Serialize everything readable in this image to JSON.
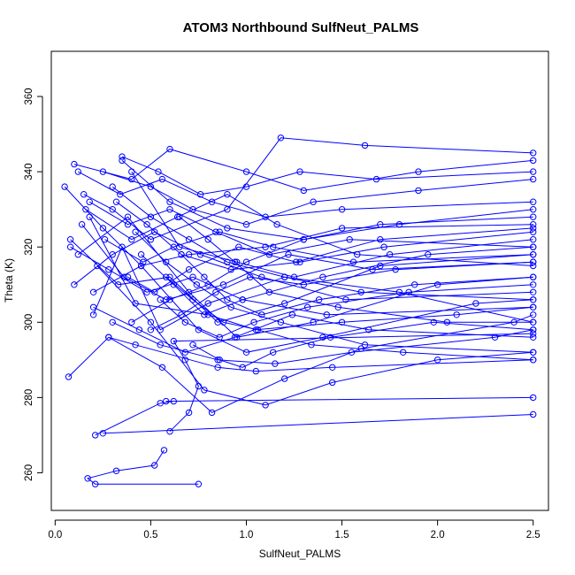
{
  "chart_data": {
    "type": "line",
    "title": "ATOM3 Northbound SulfNeut_PALMS",
    "xlabel": "SulfNeut_PALMS",
    "ylabel": "Theta (K)",
    "xlim": [
      -0.02,
      2.58
    ],
    "ylim": [
      250,
      372
    ],
    "x_ticks": [
      0,
      0.5,
      1,
      1.5,
      2,
      2.5
    ],
    "x_tick_labels": [
      "0.0",
      "0.5",
      "1.0",
      "1.5",
      "2.0",
      "2.5"
    ],
    "y_ticks": [
      260,
      280,
      300,
      320,
      340,
      360
    ],
    "y_tick_labels": [
      "260",
      "280",
      "300",
      "320",
      "340",
      "360"
    ],
    "grid": false,
    "marker": "open-circle",
    "series_color": "#0000ff",
    "series": [
      {
        "name": "",
        "x": [
          0.75,
          0.21,
          0.17,
          0.32,
          0.52,
          0.57
        ],
        "y": [
          257,
          257,
          258.5,
          260.5,
          262,
          266
        ]
      },
      {
        "name": "",
        "x": [
          0.21,
          0.55,
          0.62,
          0.58,
          2.5
        ],
        "y": [
          270,
          278.5,
          279,
          279,
          280
        ]
      },
      {
        "name": "",
        "x": [
          0.25,
          2.5
        ],
        "y": [
          270.5,
          275.5
        ]
      },
      {
        "name": "",
        "x": [
          0.07,
          0.28,
          0.42,
          0.85,
          1.05,
          1.45,
          2.5
        ],
        "y": [
          285.5,
          296,
          294,
          288,
          287,
          288,
          290
        ]
      },
      {
        "name": "",
        "x": [
          0.2,
          0.35,
          0.55,
          0.8,
          1.2,
          1.8,
          2.5
        ],
        "y": [
          302,
          320,
          298,
          305,
          312,
          308,
          300
        ]
      },
      {
        "name": "",
        "x": [
          0.1,
          0.4,
          0.6,
          1.0,
          1.3,
          1.9,
          2.5
        ],
        "y": [
          342,
          338,
          346,
          340,
          335,
          340,
          343
        ]
      },
      {
        "name": "",
        "x": [
          0.15,
          0.3,
          0.5,
          0.9,
          1.18,
          1.62,
          2.5
        ],
        "y": [
          334,
          330,
          322,
          330,
          349,
          347,
          345
        ]
      },
      {
        "name": "",
        "x": [
          0.05,
          0.25,
          0.45,
          0.7,
          1.1,
          1.5,
          2.5
        ],
        "y": [
          336,
          325,
          315,
          318,
          320,
          325,
          326
        ]
      },
      {
        "name": "",
        "x": [
          0.08,
          0.33,
          0.6,
          0.85,
          1.2,
          1.7,
          2.5
        ],
        "y": [
          322,
          310,
          312,
          300,
          305,
          315,
          318
        ]
      },
      {
        "name": "",
        "x": [
          0.12,
          0.38,
          0.7,
          0.95,
          1.35,
          2.0,
          2.5
        ],
        "y": [
          318,
          328,
          308,
          296,
          300,
          310,
          312
        ]
      },
      {
        "name": "",
        "x": [
          0.2,
          0.45,
          0.75,
          1.0,
          1.4,
          2.2,
          2.5
        ],
        "y": [
          308,
          315,
          298,
          292,
          296,
          305,
          306
        ]
      },
      {
        "name": "",
        "x": [
          0.3,
          0.55,
          0.85,
          1.15,
          1.55,
          2.3,
          2.5
        ],
        "y": [
          300,
          294,
          290,
          289,
          292,
          296,
          298
        ]
      },
      {
        "name": "",
        "x": [
          0.35,
          0.6,
          0.9,
          1.3,
          1.8,
          2.5
        ],
        "y": [
          343,
          332,
          325,
          322,
          326,
          330
        ]
      },
      {
        "name": "",
        "x": [
          0.4,
          0.65,
          0.95,
          1.25,
          1.75,
          2.5
        ],
        "y": [
          340,
          320,
          316,
          312,
          318,
          322
        ]
      },
      {
        "name": "",
        "x": [
          0.18,
          0.42,
          0.8,
          1.05,
          1.5,
          2.1,
          2.5
        ],
        "y": [
          328,
          305,
          302,
          298,
          300,
          302,
          304
        ]
      },
      {
        "name": "",
        "x": [
          0.22,
          0.5,
          0.78,
          1.1,
          1.45,
          2.0,
          2.5
        ],
        "y": [
          315,
          300,
          282,
          278,
          284,
          290,
          292
        ]
      },
      {
        "name": "",
        "x": [
          0.28,
          0.56,
          0.82,
          1.2,
          1.6,
          2.4,
          2.5
        ],
        "y": [
          296,
          288,
          276,
          285,
          293,
          300,
          302
        ]
      },
      {
        "name": "",
        "x": [
          0.6,
          0.7,
          0.75,
          0.68,
          0.62,
          2.5
        ],
        "y": [
          271,
          276,
          283,
          290,
          295,
          297
        ]
      },
      {
        "name": "",
        "x": [
          0.25,
          0.5,
          0.72,
          1.0,
          1.35,
          1.9,
          2.5
        ],
        "y": [
          340,
          336,
          330,
          326,
          332,
          335,
          338
        ]
      },
      {
        "name": "",
        "x": [
          0.32,
          0.48,
          0.66,
          0.92,
          1.28,
          1.72,
          2.5
        ],
        "y": [
          332,
          326,
          318,
          314,
          316,
          320,
          324
        ]
      },
      {
        "name": "",
        "x": [
          0.14,
          0.36,
          0.58,
          0.88,
          1.22,
          1.66,
          2.5
        ],
        "y": [
          326,
          312,
          306,
          310,
          318,
          314,
          316
        ]
      },
      {
        "name": "",
        "x": [
          0.45,
          0.62,
          0.78,
          0.98,
          1.4,
          1.95,
          2.5
        ],
        "y": [
          318,
          310,
          302,
          306,
          312,
          318,
          320
        ]
      },
      {
        "name": "",
        "x": [
          0.55,
          0.68,
          0.86,
          1.04,
          1.32,
          1.85,
          2.5
        ],
        "y": [
          306,
          300,
          296,
          300,
          304,
          308,
          310
        ]
      },
      {
        "name": "",
        "x": [
          0.38,
          0.52,
          0.7,
          0.96,
          1.26,
          1.7,
          2.5
        ],
        "y": [
          312,
          308,
          314,
          320,
          316,
          322,
          325
        ]
      },
      {
        "name": "",
        "x": [
          0.1,
          0.3,
          0.52,
          0.76,
          1.08,
          1.52,
          2.5
        ],
        "y": [
          310,
          318,
          324,
          318,
          312,
          306,
          308
        ]
      },
      {
        "name": "",
        "x": [
          0.65,
          0.8,
          0.94,
          1.12,
          1.48,
          2.05,
          2.5
        ],
        "y": [
          328,
          322,
          316,
          308,
          304,
          300,
          300
        ]
      },
      {
        "name": "",
        "x": [
          0.16,
          0.4,
          0.64,
          0.9,
          1.16,
          1.58,
          2.5
        ],
        "y": [
          330,
          322,
          328,
          334,
          326,
          318,
          315
        ]
      },
      {
        "name": "",
        "x": [
          0.12,
          0.34,
          0.56,
          0.82,
          1.1,
          1.5,
          2.5
        ],
        "y": [
          340,
          334,
          338,
          332,
          328,
          330,
          332
        ]
      },
      {
        "name": "",
        "x": [
          0.42,
          0.58,
          0.74,
          0.92,
          1.18,
          1.62,
          2.5
        ],
        "y": [
          324,
          316,
          310,
          304,
          300,
          294,
          292
        ]
      },
      {
        "name": "",
        "x": [
          0.5,
          0.66,
          0.84,
          1.02,
          1.3,
          1.78,
          2.5
        ],
        "y": [
          298,
          302,
          308,
          312,
          310,
          314,
          316
        ]
      },
      {
        "name": "",
        "x": [
          0.08,
          0.28,
          0.48,
          0.72,
          0.98,
          1.42,
          2.5
        ],
        "y": [
          320,
          314,
          308,
          312,
          306,
          302,
          304
        ]
      },
      {
        "name": "",
        "x": [
          0.35,
          0.54,
          0.76,
          1.0,
          1.28,
          1.68,
          2.5
        ],
        "y": [
          344,
          340,
          334,
          336,
          340,
          338,
          340
        ]
      },
      {
        "name": "",
        "x": [
          0.2,
          0.44,
          0.68,
          0.94,
          1.24,
          1.64,
          2.5
        ],
        "y": [
          304,
          298,
          292,
          296,
          302,
          298,
          296
        ]
      },
      {
        "name": "",
        "x": [
          0.26,
          0.46,
          0.62,
          0.86,
          1.14,
          1.56,
          2.5
        ],
        "y": [
          322,
          316,
          320,
          324,
          320,
          316,
          318
        ]
      },
      {
        "name": "",
        "x": [
          0.58,
          0.72,
          0.88,
          1.06,
          1.34,
          1.82,
          2.5
        ],
        "y": [
          312,
          306,
          300,
          298,
          294,
          292,
          290
        ]
      },
      {
        "name": "",
        "x": [
          0.3,
          0.5,
          0.7,
          0.9,
          1.2,
          1.6,
          2.5
        ],
        "y": [
          336,
          328,
          322,
          316,
          312,
          308,
          306
        ]
      },
      {
        "name": "",
        "x": [
          0.66,
          0.78,
          0.9,
          1.08,
          1.38,
          1.88,
          2.5
        ],
        "y": [
          318,
          312,
          306,
          302,
          306,
          310,
          312
        ]
      },
      {
        "name": "",
        "x": [
          0.4,
          0.6,
          0.8,
          1.0,
          1.3,
          1.7,
          2.5
        ],
        "y": [
          300,
          306,
          310,
          316,
          322,
          326,
          328
        ]
      },
      {
        "name": "",
        "x": [
          0.72,
          0.86,
          0.98,
          1.14,
          1.44,
          1.98,
          2.5
        ],
        "y": [
          294,
          290,
          288,
          292,
          296,
          300,
          298
        ]
      },
      {
        "name": "",
        "x": [
          0.18,
          0.38,
          0.6,
          0.84,
          1.12,
          1.54,
          2.5
        ],
        "y": [
          332,
          326,
          330,
          324,
          318,
          322,
          320
        ]
      }
    ]
  }
}
